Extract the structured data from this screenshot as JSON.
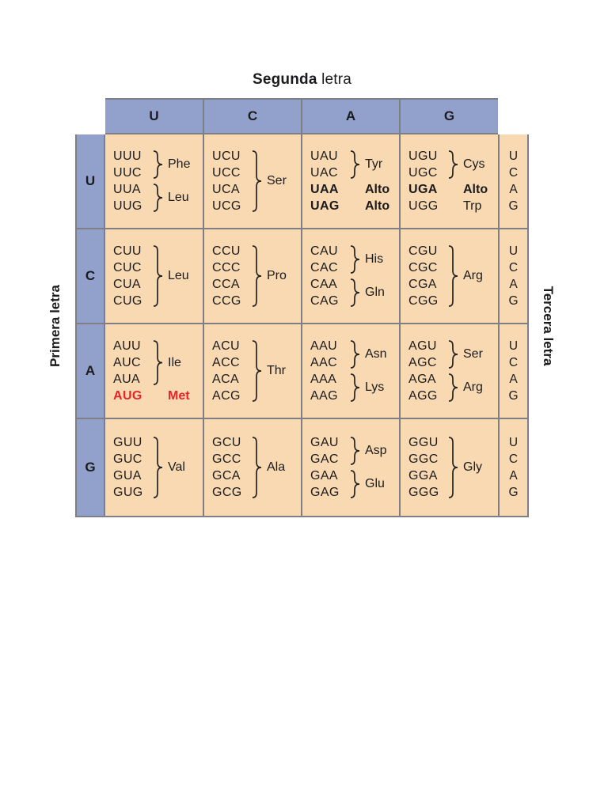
{
  "title": {
    "bold": "Segunda",
    "rest": " letra"
  },
  "axis": {
    "left": "Primera letra",
    "right": "Tercera letra"
  },
  "second_letters": [
    "U",
    "C",
    "A",
    "G"
  ],
  "third_letters": [
    "U",
    "C",
    "A",
    "G"
  ],
  "colors": {
    "header_blue": "#91a1cc",
    "cell_peach": "#f8d9b2",
    "border_gray": "#7e7e84",
    "start_red": "#e52528",
    "text": "#1b1b1d"
  },
  "rows": [
    {
      "first": "U",
      "cells": [
        {
          "groups": [
            {
              "codons": [
                "UUU",
                "UUC"
              ],
              "label": "Phe"
            },
            {
              "codons": [
                "UUA",
                "UUG"
              ],
              "label": "Leu"
            }
          ]
        },
        {
          "groups": [
            {
              "codons": [
                "UCU",
                "UCC",
                "UCA",
                "UCG"
              ],
              "label": "Ser"
            }
          ]
        },
        {
          "groups": [
            {
              "codons": [
                "UAU",
                "UAC"
              ],
              "label": "Tyr"
            },
            {
              "codons": [
                "UAA"
              ],
              "label": "Alto",
              "bold": true
            },
            {
              "codons": [
                "UAG"
              ],
              "label": "Alto",
              "bold": true
            }
          ]
        },
        {
          "groups": [
            {
              "codons": [
                "UGU",
                "UGC"
              ],
              "label": "Cys"
            },
            {
              "codons": [
                "UGA"
              ],
              "label": "Alto",
              "bold": true
            },
            {
              "codons": [
                "UGG"
              ],
              "label": "Trp"
            }
          ]
        }
      ]
    },
    {
      "first": "C",
      "cells": [
        {
          "groups": [
            {
              "codons": [
                "CUU",
                "CUC",
                "CUA",
                "CUG"
              ],
              "label": "Leu"
            }
          ]
        },
        {
          "groups": [
            {
              "codons": [
                "CCU",
                "CCC",
                "CCA",
                "CCG"
              ],
              "label": "Pro"
            }
          ]
        },
        {
          "groups": [
            {
              "codons": [
                "CAU",
                "CAC"
              ],
              "label": "His"
            },
            {
              "codons": [
                "CAA",
                "CAG"
              ],
              "label": "Gln"
            }
          ]
        },
        {
          "groups": [
            {
              "codons": [
                "CGU",
                "CGC",
                "CGA",
                "CGG"
              ],
              "label": "Arg"
            }
          ]
        }
      ]
    },
    {
      "first": "A",
      "cells": [
        {
          "groups": [
            {
              "codons": [
                "AUU",
                "AUC",
                "AUA"
              ],
              "label": "Ile"
            },
            {
              "codons": [
                "AUG"
              ],
              "label": "Met",
              "red": true
            }
          ]
        },
        {
          "groups": [
            {
              "codons": [
                "ACU",
                "ACC",
                "ACA",
                "ACG"
              ],
              "label": "Thr"
            }
          ]
        },
        {
          "groups": [
            {
              "codons": [
                "AAU",
                "AAC"
              ],
              "label": "Asn"
            },
            {
              "codons": [
                "AAA",
                "AAG"
              ],
              "label": "Lys"
            }
          ]
        },
        {
          "groups": [
            {
              "codons": [
                "AGU",
                "AGC"
              ],
              "label": "Ser"
            },
            {
              "codons": [
                "AGA",
                "AGG"
              ],
              "label": "Arg"
            }
          ]
        }
      ]
    },
    {
      "first": "G",
      "cells": [
        {
          "groups": [
            {
              "codons": [
                "GUU",
                "GUC",
                "GUA",
                "GUG"
              ],
              "label": "Val"
            }
          ]
        },
        {
          "groups": [
            {
              "codons": [
                "GCU",
                "GCC",
                "GCA",
                "GCG"
              ],
              "label": "Ala"
            }
          ]
        },
        {
          "groups": [
            {
              "codons": [
                "GAU",
                "GAC"
              ],
              "label": "Asp"
            },
            {
              "codons": [
                "GAA",
                "GAG"
              ],
              "label": "Glu"
            }
          ]
        },
        {
          "groups": [
            {
              "codons": [
                "GGU",
                "GGC",
                "GGA",
                "GGG"
              ],
              "label": "Gly"
            }
          ]
        }
      ]
    }
  ]
}
